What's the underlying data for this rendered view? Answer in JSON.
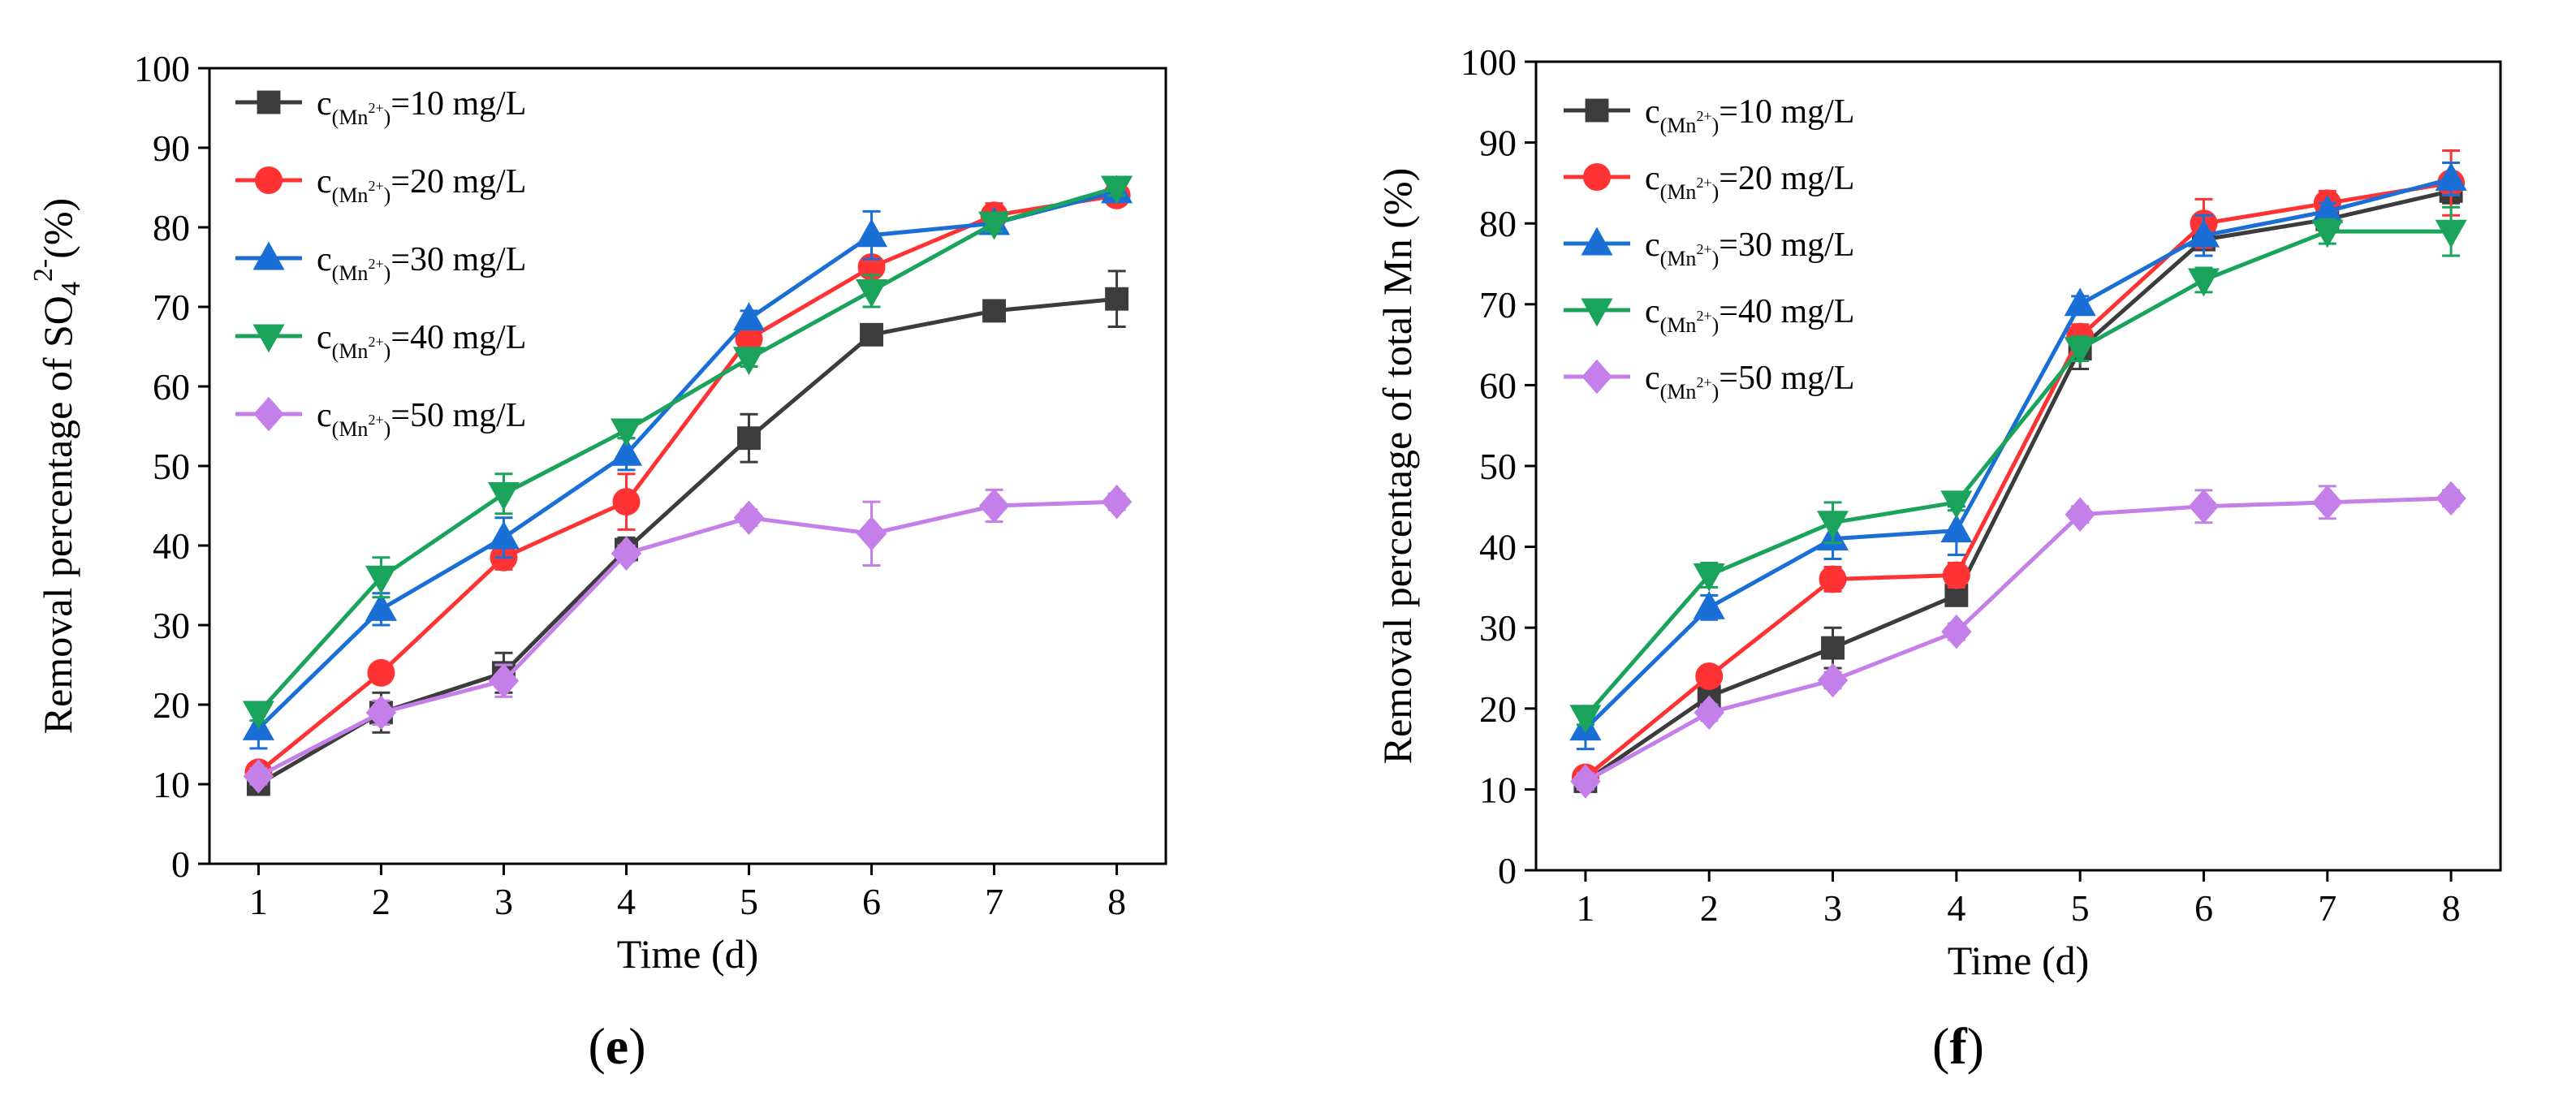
{
  "chart_data": [
    {
      "type": "line",
      "panel_label": "e",
      "xlabel": "Time (d)",
      "ylabel_parts": {
        "prefix": "Removal percentage of SO",
        "sub": "4",
        "sup": "2-",
        "suffix": "(%)"
      },
      "xlim": [
        0.6,
        8.4
      ],
      "ylim": [
        0,
        100
      ],
      "x_ticks": [
        1,
        2,
        3,
        4,
        5,
        6,
        7,
        8
      ],
      "y_ticks": [
        0,
        10,
        20,
        30,
        40,
        50,
        60,
        70,
        80,
        90,
        100
      ],
      "x": [
        1,
        2,
        3,
        4,
        5,
        6,
        7,
        8
      ],
      "legend_position": "top-left",
      "series": [
        {
          "name": "c(Mn2+)=10 mg/L",
          "value_text": "=10 mg/L",
          "color": "#3c3c3c",
          "marker": "square",
          "values": [
            10,
            19,
            24,
            39.5,
            53.5,
            66.5,
            69.5,
            71
          ],
          "errors": [
            1.2,
            2.5,
            2.5,
            1.5,
            3,
            1,
            1.2,
            3.5
          ]
        },
        {
          "name": "c(Mn2+)=20 mg/L",
          "value_text": "=20 mg/L",
          "color": "#ff3333",
          "marker": "circle",
          "values": [
            11.5,
            24,
            38.5,
            45.5,
            66,
            75,
            81.5,
            84
          ],
          "errors": [
            1,
            1,
            1.5,
            3.5,
            1,
            3,
            1.5,
            1
          ]
        },
        {
          "name": "c(Mn2+)=30 mg/L",
          "value_text": "=30 mg/L",
          "color": "#1a6fd6",
          "marker": "triangle-up",
          "values": [
            17,
            32,
            41,
            51.5,
            68.5,
            79,
            80.5,
            84.5
          ],
          "errors": [
            2.5,
            2,
            2.5,
            2,
            1,
            3,
            1,
            1
          ]
        },
        {
          "name": "c(Mn2+)=40 mg/L",
          "value_text": "=40 mg/L",
          "color": "#1aa35a",
          "marker": "triangle-down",
          "values": [
            19,
            36,
            46.5,
            54.5,
            63.5,
            72,
            80.5,
            85
          ],
          "errors": [
            1,
            2.5,
            2.5,
            1,
            1,
            2,
            1,
            1
          ]
        },
        {
          "name": "c(Mn2+)=50 mg/L",
          "value_text": "=50 mg/L",
          "color": "#c47fe8",
          "marker": "diamond",
          "values": [
            11,
            19,
            23,
            39,
            43.5,
            41.5,
            45,
            45.5
          ],
          "errors": [
            1,
            1.5,
            2,
            1,
            1,
            4,
            2,
            1
          ]
        }
      ]
    },
    {
      "type": "line",
      "panel_label": "f",
      "xlabel": "Time (d)",
      "ylabel": "Removal percentage of total Mn (%)",
      "xlim": [
        0.6,
        8.4
      ],
      "ylim": [
        0,
        100
      ],
      "x_ticks": [
        1,
        2,
        3,
        4,
        5,
        6,
        7,
        8
      ],
      "y_ticks": [
        0,
        10,
        20,
        30,
        40,
        50,
        60,
        70,
        80,
        90,
        100
      ],
      "x": [
        1,
        2,
        3,
        4,
        5,
        6,
        7,
        8
      ],
      "legend_position": "top-left",
      "series": [
        {
          "name": "c(Mn2+)=10 mg/L",
          "value_text": "=10 mg/L",
          "color": "#3c3c3c",
          "marker": "square",
          "values": [
            11,
            21.5,
            27.5,
            34,
            64.5,
            78,
            80.5,
            84
          ],
          "errors": [
            1,
            2,
            2.5,
            1,
            2.5,
            2,
            1.5,
            1.5
          ]
        },
        {
          "name": "c(Mn2+)=20 mg/L",
          "value_text": "=20 mg/L",
          "color": "#ff3333",
          "marker": "circle",
          "values": [
            11.5,
            24,
            36,
            36.5,
            66,
            80,
            82.5,
            85
          ],
          "errors": [
            1,
            1,
            1.5,
            1.5,
            1.5,
            3,
            1.5,
            4
          ]
        },
        {
          "name": "c(Mn2+)=30 mg/L",
          "value_text": "=30 mg/L",
          "color": "#1a6fd6",
          "marker": "triangle-up",
          "values": [
            17.5,
            32.5,
            41,
            42,
            70,
            78.5,
            81.5,
            85.5
          ],
          "errors": [
            2.5,
            1.5,
            2.5,
            3,
            1,
            2.5,
            1,
            2
          ]
        },
        {
          "name": "c(Mn2+)=40 mg/L",
          "value_text": "=40 mg/L",
          "color": "#1aa35a",
          "marker": "triangle-down",
          "values": [
            19,
            36.5,
            43,
            45.5,
            64.5,
            73,
            79,
            79
          ],
          "errors": [
            1,
            1.5,
            2.5,
            1,
            1.5,
            1.5,
            1.5,
            3
          ]
        },
        {
          "name": "c(Mn2+)=50 mg/L",
          "value_text": "=50 mg/L",
          "color": "#c47fe8",
          "marker": "diamond",
          "values": [
            11,
            19.5,
            23.5,
            29.5,
            44,
            45,
            45.5,
            46
          ],
          "errors": [
            1,
            1,
            1,
            1,
            1,
            2,
            2,
            1
          ]
        }
      ]
    }
  ]
}
